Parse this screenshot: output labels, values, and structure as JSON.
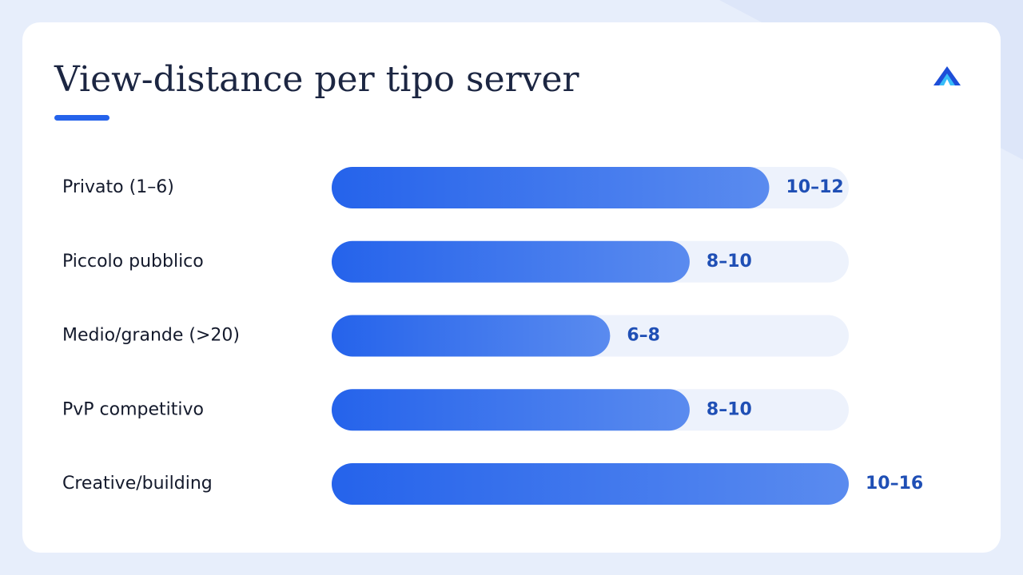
{
  "chart_data": {
    "type": "bar",
    "orientation": "horizontal",
    "title": "View-distance per tipo server",
    "categories": [
      "Privato (1–6)",
      "Piccolo pubblico",
      "Medio/grande (>20)",
      "PvP competitivo",
      "Creative/building"
    ],
    "values": [
      11,
      9,
      7,
      9,
      13
    ],
    "value_labels": [
      "10–12",
      "8–10",
      "6–8",
      "8–10",
      "10–16"
    ],
    "xlim": [
      0,
      13
    ],
    "color": "#2563eb"
  }
}
